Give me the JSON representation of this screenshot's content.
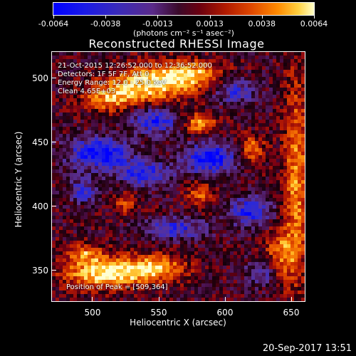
{
  "colorbar": {
    "labels": [
      "-0.0064",
      "-0.0038",
      "-0.0013",
      "0.0013",
      "0.0038",
      "0.0064"
    ],
    "units": "(photons cm⁻² s⁻¹ asec⁻²)",
    "min": -0.0064,
    "max": 0.0064
  },
  "plot": {
    "title": "Reconstructed RHESSI Image",
    "xlabel": "Heliocentric X (arcsec)",
    "ylabel": "Heliocentric Y (arcsec)",
    "xticks": [
      "500",
      "550",
      "600",
      "650"
    ],
    "yticks": [
      "500",
      "450",
      "400",
      "350"
    ],
    "xlim": [
      470,
      660
    ],
    "ylim": [
      325,
      520
    ],
    "info": {
      "time_range": "21-Oct-2015 12:26:52.000 to 12:36:52.000",
      "detectors": "Detectors: 1F 5F 7F, Att 0",
      "energy": "Energy Range: 12.0 - 25.0 keV",
      "clean": "Clean         4.65E+03"
    },
    "peak": "Position of Peak = [509,364]"
  },
  "timestamp": "20-Sep-2017 13:51"
}
